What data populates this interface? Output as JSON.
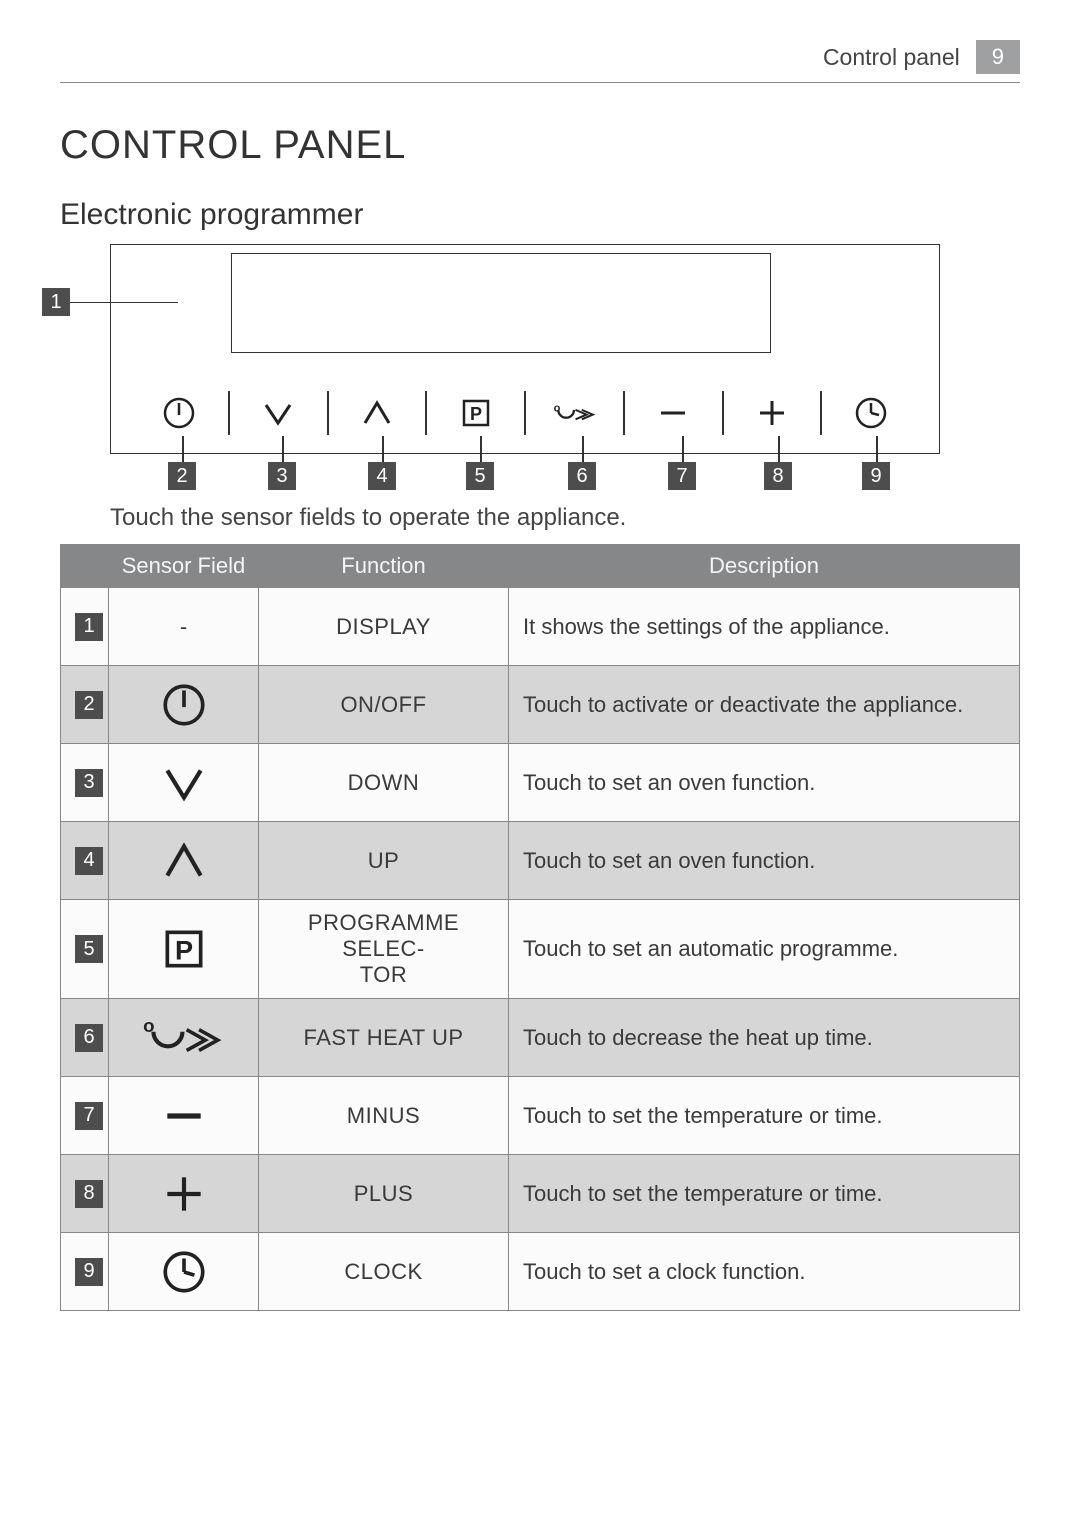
{
  "header": {
    "section_label": "Control panel",
    "page_number": "9"
  },
  "title": "CONTROL PANEL",
  "subtitle": "Electronic programmer",
  "instruction": "Touch the sensor fields to operate the appliance.",
  "diagram": {
    "display_callout": "1",
    "callouts": [
      "2",
      "3",
      "4",
      "5",
      "6",
      "7",
      "8",
      "9"
    ],
    "icons_in_strip": [
      "onoff",
      "down",
      "up",
      "prog",
      "fastheat",
      "minus",
      "plus",
      "clock"
    ],
    "stroke_color": "#333333"
  },
  "table": {
    "columns": [
      "",
      "Sensor Field",
      "Function",
      "Description"
    ],
    "rows": [
      {
        "n": "1",
        "sensor_text": "-",
        "icon": null,
        "function": "DISPLAY",
        "description": "It shows the settings of the appliance.",
        "alt": false
      },
      {
        "n": "2",
        "sensor_text": "",
        "icon": "onoff",
        "function": "ON/OFF",
        "description": "Touch to activate or deactivate the appliance.",
        "alt": true
      },
      {
        "n": "3",
        "sensor_text": "",
        "icon": "down",
        "function": "DOWN",
        "description": "Touch to set an oven function.",
        "alt": false
      },
      {
        "n": "4",
        "sensor_text": "",
        "icon": "up",
        "function": "UP",
        "description": "Touch to set an oven function.",
        "alt": true
      },
      {
        "n": "5",
        "sensor_text": "",
        "icon": "prog",
        "function": "PROGRAMME SELEC-\nTOR",
        "description": "Touch to set an automatic programme.",
        "alt": false
      },
      {
        "n": "6",
        "sensor_text": "",
        "icon": "fastheat",
        "function": "FAST HEAT UP",
        "description": "Touch to decrease the heat up time.",
        "alt": true
      },
      {
        "n": "7",
        "sensor_text": "",
        "icon": "minus",
        "function": "MINUS",
        "description": "Touch to set the temperature or time.",
        "alt": false
      },
      {
        "n": "8",
        "sensor_text": "",
        "icon": "plus",
        "function": "PLUS",
        "description": "Touch to set the temperature or time.",
        "alt": true
      },
      {
        "n": "9",
        "sensor_text": "",
        "icon": "clock",
        "function": "CLOCK",
        "description": "Touch to set a clock function.",
        "alt": false
      }
    ]
  },
  "colors": {
    "header_bg": "#868789",
    "alt_row_bg": "#d6d6d6",
    "numbox_bg": "#4d4d4d",
    "pagenum_bg": "#9ea0a2"
  },
  "icon_svgs": {
    "stroke": "#222222",
    "stroke_width": 3
  }
}
